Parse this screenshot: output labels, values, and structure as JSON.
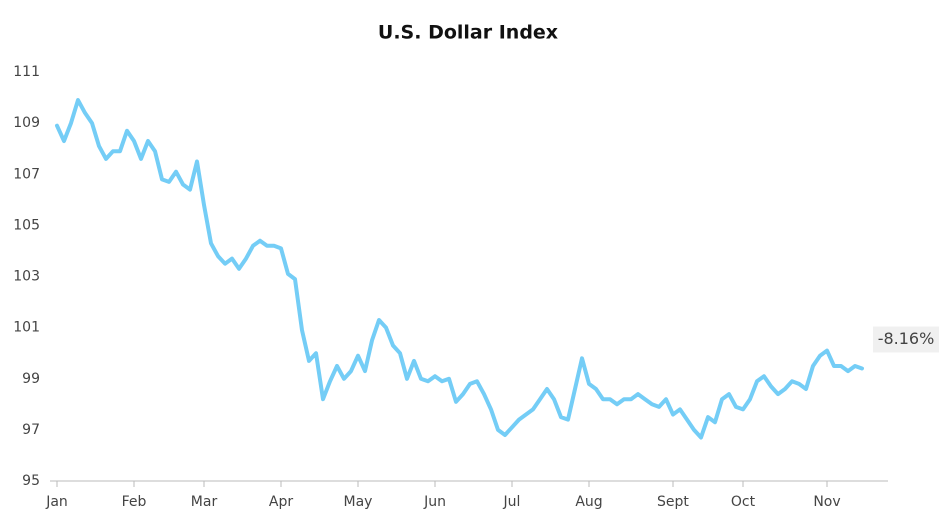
{
  "chart_data": {
    "type": "line",
    "title": "U.S. Dollar Index",
    "categories": [
      "Jan",
      null,
      null,
      null,
      null,
      null,
      null,
      null,
      null,
      null,
      null,
      "Feb",
      null,
      null,
      null,
      null,
      null,
      null,
      null,
      null,
      null,
      "Mar",
      null,
      null,
      null,
      null,
      null,
      null,
      null,
      null,
      null,
      null,
      "Apr",
      null,
      null,
      null,
      null,
      null,
      null,
      null,
      null,
      null,
      null,
      "May",
      null,
      null,
      null,
      null,
      null,
      null,
      null,
      null,
      null,
      null,
      "Jun",
      null,
      null,
      null,
      null,
      null,
      null,
      null,
      null,
      null,
      null,
      "Jul",
      null,
      null,
      null,
      null,
      null,
      null,
      null,
      null,
      null,
      null,
      "Aug",
      null,
      null,
      null,
      null,
      null,
      null,
      null,
      null,
      null,
      null,
      null,
      "Sept",
      null,
      null,
      null,
      null,
      null,
      null,
      null,
      null,
      null,
      "Oct",
      null,
      null,
      null,
      null,
      null,
      null,
      null,
      null,
      null,
      null,
      null,
      "Nov",
      null,
      null,
      null,
      null,
      null
    ],
    "values": [
      108.9,
      108.3,
      109.0,
      109.9,
      109.4,
      109.0,
      108.1,
      107.6,
      107.9,
      107.9,
      108.7,
      108.3,
      107.6,
      108.3,
      107.9,
      106.8,
      106.7,
      107.1,
      106.6,
      106.4,
      107.5,
      105.8,
      104.3,
      103.8,
      103.5,
      103.7,
      103.3,
      103.7,
      104.2,
      104.4,
      104.2,
      104.2,
      104.1,
      103.1,
      102.9,
      100.9,
      99.7,
      100.0,
      98.2,
      98.9,
      99.5,
      99.0,
      99.3,
      99.9,
      99.3,
      100.5,
      101.3,
      101.0,
      100.3,
      100.0,
      99.0,
      99.7,
      99.0,
      98.9,
      99.1,
      98.9,
      99.0,
      98.1,
      98.4,
      98.8,
      98.9,
      98.4,
      97.8,
      97.0,
      96.8,
      97.1,
      97.4,
      97.6,
      97.8,
      98.2,
      98.6,
      98.2,
      97.5,
      97.4,
      98.6,
      99.8,
      98.8,
      98.6,
      98.2,
      98.2,
      98.0,
      98.2,
      98.2,
      98.4,
      98.2,
      98.0,
      97.9,
      98.2,
      97.6,
      97.8,
      97.4,
      97.0,
      96.7,
      97.5,
      97.3,
      98.2,
      98.4,
      97.9,
      97.8,
      98.2,
      98.9,
      99.1,
      98.7,
      98.4,
      98.6,
      98.9,
      98.8,
      98.6,
      99.5,
      99.9,
      100.1,
      99.5,
      99.5,
      99.3,
      99.5,
      99.4
    ],
    "color": "#74cdf6",
    "ylim": [
      95,
      111
    ],
    "yticks": [
      95,
      97,
      99,
      101,
      103,
      105,
      107,
      109,
      111
    ],
    "grid": false,
    "annotation": "-8.16%"
  }
}
